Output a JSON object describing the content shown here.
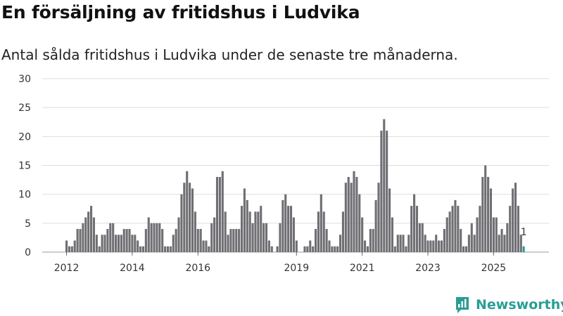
{
  "title": "En försäljning av fritidshus i Ludvika",
  "subtitle": "Antal sålda fritidshus i Ludvika under de senaste tre månaderna.",
  "brand": {
    "name": "Newsworthy",
    "icon": "newsworthy-logo-icon"
  },
  "colors": {
    "bar": "#6e6e73",
    "highlight": "#2a9d95",
    "grid": "#dddddd",
    "brand": "#2a9d95"
  },
  "chart_data": {
    "type": "bar",
    "title": "",
    "xlabel": "",
    "ylabel": "",
    "x_start": "2012-01",
    "frequency": "monthly",
    "ylim": [
      0,
      30
    ],
    "yticks": [
      0,
      5,
      10,
      15,
      20,
      25,
      30
    ],
    "xticks": [
      "2012",
      "2014",
      "2016",
      "2019",
      "2021",
      "2023",
      "2025"
    ],
    "grid": true,
    "values": [
      2,
      1,
      1,
      2,
      4,
      4,
      5,
      6,
      7,
      8,
      6,
      3,
      1,
      3,
      3,
      4,
      5,
      5,
      3,
      3,
      3,
      4,
      4,
      4,
      3,
      3,
      2,
      1,
      1,
      4,
      6,
      5,
      5,
      5,
      5,
      4,
      1,
      1,
      1,
      3,
      4,
      6,
      10,
      12,
      14,
      12,
      11,
      7,
      4,
      4,
      2,
      2,
      1,
      5,
      6,
      13,
      13,
      14,
      7,
      3,
      4,
      4,
      4,
      4,
      8,
      11,
      9,
      7,
      5,
      7,
      7,
      8,
      5,
      5,
      2,
      1,
      0,
      1,
      5,
      9,
      10,
      8,
      8,
      6,
      2,
      0,
      0,
      1,
      1,
      2,
      1,
      4,
      7,
      10,
      7,
      4,
      2,
      1,
      1,
      1,
      3,
      7,
      12,
      13,
      12,
      14,
      13,
      10,
      6,
      2,
      1,
      4,
      4,
      9,
      12,
      21,
      23,
      21,
      11,
      6,
      1,
      3,
      3,
      3,
      1,
      3,
      8,
      10,
      8,
      5,
      5,
      3,
      2,
      2,
      2,
      3,
      2,
      2,
      4,
      6,
      7,
      8,
      9,
      8,
      4,
      1,
      1,
      3,
      5,
      3,
      6,
      8,
      13,
      15,
      13,
      11,
      6,
      6,
      3,
      4,
      3,
      5,
      8,
      11,
      12,
      8,
      3,
      1
    ],
    "highlight_last": true,
    "annotation": {
      "text": "1",
      "target": "last"
    }
  }
}
